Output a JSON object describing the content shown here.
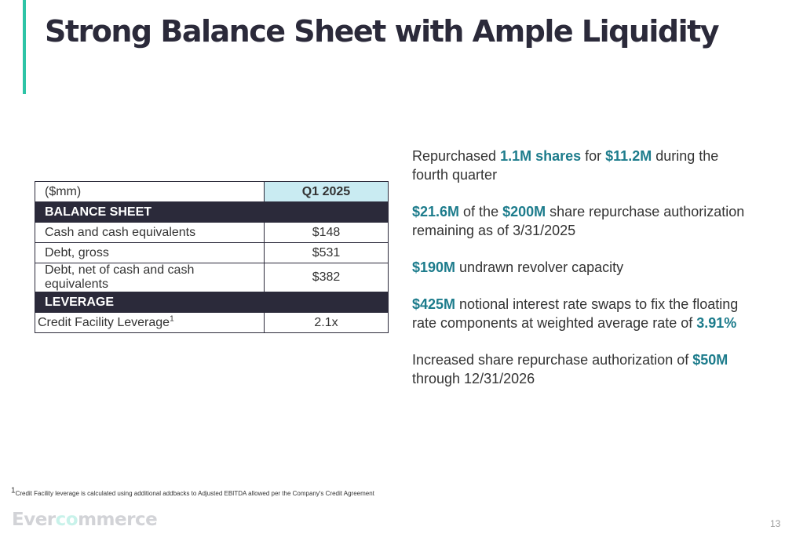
{
  "title": "Strong Balance Sheet with Ample Liquidity",
  "table": {
    "header": {
      "label": "($mm)",
      "period": "Q1 2025"
    },
    "sections": [
      {
        "name": "BALANCE SHEET",
        "rows": [
          {
            "label": "Cash and cash equivalents",
            "value": "$148"
          },
          {
            "label": "Debt, gross",
            "value": "$531"
          },
          {
            "label": "Debt, net of cash and cash equivalents",
            "value": "$382"
          }
        ]
      },
      {
        "name": "LEVERAGE",
        "rows": [
          {
            "label": "Credit Facility Leverage",
            "sup": "1",
            "value": "2.1x"
          }
        ]
      }
    ]
  },
  "bullets": [
    [
      "Repurchased ",
      {
        "hl": "1.1M shares"
      },
      " for ",
      {
        "hl": "$11.2M"
      },
      " during the fourth quarter"
    ],
    [
      {
        "hl": "$21.6M"
      },
      " of the ",
      {
        "hl": "$200M"
      },
      " share repurchase authorization remaining as of 3/31/2025"
    ],
    [
      {
        "hl": "$190M"
      },
      " undrawn revolver capacity"
    ],
    [
      {
        "hl": "$425M"
      },
      " notional interest rate swaps to fix the floating rate components at weighted average rate of ",
      {
        "hl": "3.91%"
      }
    ],
    [
      "Increased share repurchase authorization of ",
      {
        "hl": "$50M"
      },
      " through 12/31/2026"
    ]
  ],
  "footnote": {
    "sup": "1",
    "text": "Credit Facility leverage is calculated using additional addbacks to Adjusted EBITDA allowed per the Company's Credit Agreement"
  },
  "logo": {
    "part1": "Ever",
    "mark": "co",
    "part2": "mmerce"
  },
  "page_number": "13",
  "colors": {
    "accent": "#2ec4a6",
    "highlight": "#1d7c8c",
    "dark": "#2b2a3a",
    "table_header": "#c9ebf2"
  }
}
